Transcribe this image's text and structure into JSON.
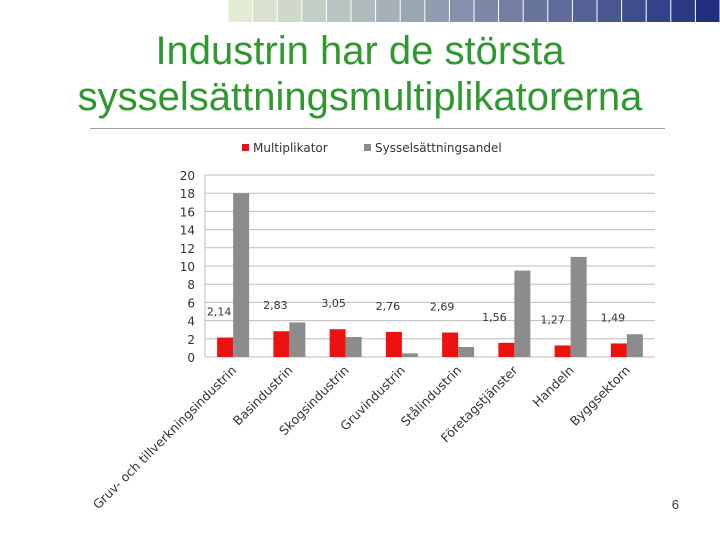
{
  "slide": {
    "title_line1": "Industrin har de största",
    "title_line2": "sysselsättningsmultiplikatorerna",
    "page_number": "6"
  },
  "colors": {
    "title": "#2e9a2e",
    "multiplikator": "#ee1111",
    "sysselsattningsandel": "#8c8c8c",
    "deco_start": "#e3ecd2",
    "deco_end": "#1f2f7e"
  },
  "chart_data": {
    "type": "bar",
    "categories": [
      "Gruv- och tillverkningsindustrin",
      "Basindustrin",
      "Skogsindustrin",
      "Gruvindustrin",
      "Stålindustrin",
      "Företagstjänster",
      "Handeln",
      "Byggsektorn"
    ],
    "series": [
      {
        "name": "Multiplikator",
        "values": [
          2.14,
          2.83,
          3.05,
          2.76,
          2.69,
          1.56,
          1.27,
          1.49
        ],
        "labels": [
          "2,14",
          "2,83",
          "3,05",
          "2,76",
          "2,69",
          "1,56",
          "1,27",
          "1,49"
        ]
      },
      {
        "name": "Sysselsättningsandel",
        "values": [
          18.0,
          3.8,
          2.2,
          0.4,
          1.1,
          9.5,
          11.0,
          2.5
        ]
      }
    ],
    "yticks": [
      "0",
      "2",
      "4",
      "6",
      "8",
      "10",
      "12",
      "14",
      "16",
      "18",
      "20"
    ],
    "ylim": [
      0,
      20
    ],
    "grid": true,
    "legend": "top"
  }
}
